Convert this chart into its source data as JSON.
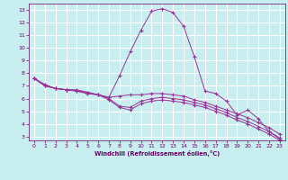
{
  "xlabel": "Windchill (Refroidissement éolien,°C)",
  "background_color": "#c8eef0",
  "grid_color": "#ffffff",
  "line_color": "#993399",
  "x_ticks": [
    0,
    1,
    2,
    3,
    4,
    5,
    6,
    7,
    8,
    9,
    10,
    11,
    12,
    13,
    14,
    15,
    16,
    17,
    18,
    19,
    20,
    21,
    22,
    23
  ],
  "y_ticks": [
    3,
    4,
    5,
    6,
    7,
    8,
    9,
    10,
    11,
    12,
    13
  ],
  "xlim": [
    -0.5,
    23.5
  ],
  "ylim": [
    2.7,
    13.5
  ],
  "lines": [
    {
      "x": [
        0,
        1,
        2,
        3,
        4,
        5,
        6,
        7,
        8,
        9,
        10,
        11,
        12,
        13,
        14,
        15,
        16,
        17,
        18,
        19,
        20,
        21,
        22,
        23
      ],
      "y": [
        7.6,
        7.1,
        6.8,
        6.7,
        6.7,
        6.5,
        6.3,
        6.1,
        7.8,
        9.7,
        11.4,
        12.9,
        13.1,
        12.8,
        11.7,
        9.3,
        6.6,
        6.4,
        5.8,
        4.7,
        5.1,
        4.4,
        3.4,
        2.8
      ]
    },
    {
      "x": [
        0,
        1,
        2,
        3,
        4,
        5,
        6,
        7,
        8,
        9,
        10,
        11,
        12,
        13,
        14,
        15,
        16,
        17,
        18,
        19,
        20,
        21,
        22,
        23
      ],
      "y": [
        7.6,
        7.1,
        6.8,
        6.7,
        6.6,
        6.5,
        6.3,
        6.1,
        6.2,
        6.3,
        6.3,
        6.4,
        6.4,
        6.3,
        6.2,
        5.9,
        5.7,
        5.4,
        5.1,
        4.8,
        4.5,
        4.1,
        3.7,
        3.2
      ]
    },
    {
      "x": [
        0,
        1,
        2,
        3,
        4,
        5,
        6,
        7,
        8,
        9,
        10,
        11,
        12,
        13,
        14,
        15,
        16,
        17,
        18,
        19,
        20,
        21,
        22,
        23
      ],
      "y": [
        7.6,
        7.0,
        6.8,
        6.7,
        6.6,
        6.4,
        6.3,
        6.0,
        5.4,
        5.3,
        5.8,
        6.0,
        6.1,
        6.0,
        5.9,
        5.7,
        5.5,
        5.2,
        4.9,
        4.5,
        4.2,
        3.8,
        3.4,
        2.9
      ]
    },
    {
      "x": [
        0,
        1,
        2,
        3,
        4,
        5,
        6,
        7,
        8,
        9,
        10,
        11,
        12,
        13,
        14,
        15,
        16,
        17,
        18,
        19,
        20,
        21,
        22,
        23
      ],
      "y": [
        7.6,
        7.0,
        6.8,
        6.7,
        6.6,
        6.4,
        6.3,
        5.9,
        5.3,
        5.1,
        5.6,
        5.8,
        5.9,
        5.8,
        5.7,
        5.5,
        5.3,
        5.0,
        4.7,
        4.3,
        4.0,
        3.6,
        3.2,
        2.7
      ]
    }
  ]
}
